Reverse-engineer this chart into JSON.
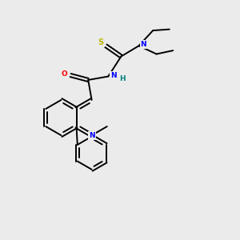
{
  "bg_color": "#ebebeb",
  "bond_color": "#000000",
  "atom_colors": {
    "N": "#0000ff",
    "O": "#ff0000",
    "S": "#b8b800",
    "H": "#008080",
    "C": "#000000"
  },
  "figsize": [
    3.0,
    3.0
  ],
  "dpi": 100
}
